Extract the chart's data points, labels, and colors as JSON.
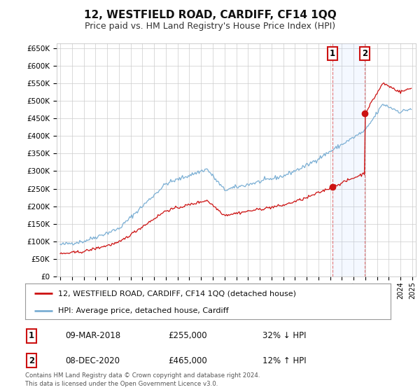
{
  "title": "12, WESTFIELD ROAD, CARDIFF, CF14 1QQ",
  "subtitle": "Price paid vs. HM Land Registry's House Price Index (HPI)",
  "title_fontsize": 11,
  "subtitle_fontsize": 9,
  "hpi_color": "#7bafd4",
  "price_color": "#cc1111",
  "background_color": "#ffffff",
  "plot_bg_color": "#ffffff",
  "grid_color": "#cccccc",
  "yticks": [
    0,
    50000,
    100000,
    150000,
    200000,
    250000,
    300000,
    350000,
    400000,
    450000,
    500000,
    550000,
    600000,
    650000
  ],
  "sale1": {
    "date_num": 2018.19,
    "price": 255000,
    "label": "1",
    "date_str": "09-MAR-2018",
    "hpi_diff": "32% ↓ HPI"
  },
  "sale2": {
    "date_num": 2020.93,
    "price": 465000,
    "label": "2",
    "date_str": "08-DEC-2020",
    "hpi_diff": "12% ↑ HPI"
  },
  "legend_label1": "12, WESTFIELD ROAD, CARDIFF, CF14 1QQ (detached house)",
  "legend_label2": "HPI: Average price, detached house, Cardiff",
  "footer": "Contains HM Land Registry data © Crown copyright and database right 2024.\nThis data is licensed under the Open Government Licence v3.0.",
  "table_rows": [
    {
      "num": "1",
      "date": "09-MAR-2018",
      "price": "£255,000",
      "hpi": "32% ↓ HPI"
    },
    {
      "num": "2",
      "date": "08-DEC-2020",
      "price": "£465,000",
      "hpi": "12% ↑ HPI"
    }
  ],
  "xmin": 1994.7,
  "xmax": 2025.3
}
